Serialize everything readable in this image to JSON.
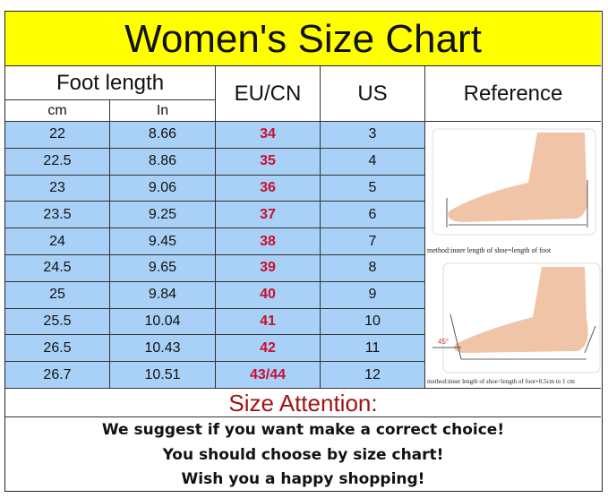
{
  "title": "Women's Size Chart",
  "headers": {
    "foot_length": "Foot length",
    "cm": "cm",
    "in": "In",
    "eu_cn": "EU/CN",
    "us": "US",
    "reference": "Reference"
  },
  "rows": [
    {
      "cm": "22",
      "in": "8.66",
      "eu": "34",
      "us": "3"
    },
    {
      "cm": "22.5",
      "in": "8.86",
      "eu": "35",
      "us": "4"
    },
    {
      "cm": "23",
      "in": "9.06",
      "eu": "36",
      "us": "5"
    },
    {
      "cm": "23.5",
      "in": "9.25",
      "eu": "37",
      "us": "6"
    },
    {
      "cm": "24",
      "in": "9.45",
      "eu": "38",
      "us": "7"
    },
    {
      "cm": "24.5",
      "in": "9.65",
      "eu": "39",
      "us": "8"
    },
    {
      "cm": "25",
      "in": "9.84",
      "eu": "40",
      "us": "9"
    },
    {
      "cm": "25.5",
      "in": "10.04",
      "eu": "41",
      "us": "10"
    },
    {
      "cm": "26.5",
      "in": "10.43",
      "eu": "42",
      "us": "11"
    },
    {
      "cm": "26.7",
      "in": "10.51",
      "eu": "43/44",
      "us": "12"
    }
  ],
  "reference": {
    "caption1": "method:inner length of shoe=length of foot",
    "caption2": "method:inner length of shoe=length of foot+0.5cm to 1 cm",
    "angle": "45°"
  },
  "attention": {
    "title": "Size Attention:",
    "lines": [
      "We suggest if you want make a correct choice!",
      "You should choose by size chart!",
      "Wish you a happy shopping!"
    ]
  },
  "colors": {
    "title_bg": "#ffff00",
    "row_bg": "#a9d1f7",
    "eu_text": "#c8102e",
    "attention": "#a01414"
  }
}
